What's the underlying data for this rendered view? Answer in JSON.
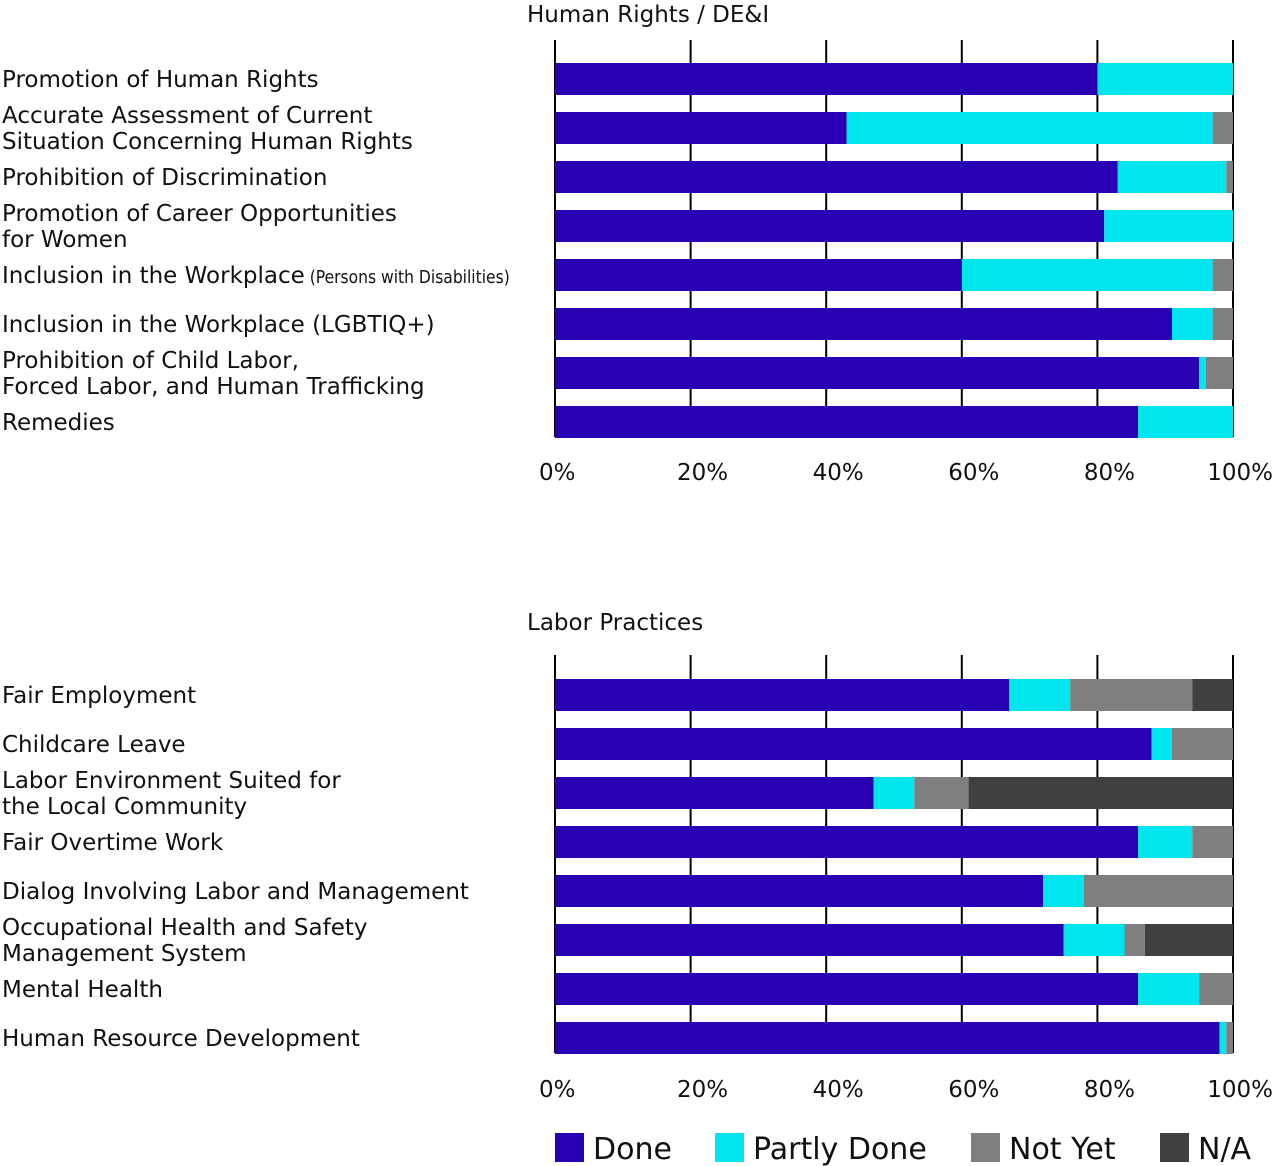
{
  "colors": {
    "Done": "#2a00b4",
    "Partly Done": "#00e6ee",
    "Not Yet": "#7f7f7f",
    "N/A": "#404040"
  },
  "legend": [
    "Done",
    "Partly Done",
    "Not Yet",
    "N/A"
  ],
  "chart_data": [
    {
      "type": "bar",
      "orientation": "horizontal",
      "stacked": true,
      "title": "Human Rights / DE&I",
      "categories": [
        {
          "lines": [
            "Promotion of Human Rights"
          ]
        },
        {
          "lines": [
            "Accurate Assessment of Current",
            "Situation Concerning Human Rights"
          ]
        },
        {
          "lines": [
            "Prohibition of Discrimination"
          ]
        },
        {
          "lines": [
            "Promotion of Career Opportunities",
            "for Women"
          ]
        },
        {
          "lines": [
            "Inclusion in the Workplace"
          ],
          "suffix": "(Persons with Disabilities)"
        },
        {
          "lines": [
            "Inclusion in the Workplace (LGBTIQ+)"
          ]
        },
        {
          "lines": [
            "Prohibition of Child Labor,",
            "Forced Labor, and Human Trafficking"
          ]
        },
        {
          "lines": [
            "Remedies"
          ]
        }
      ],
      "series": [
        {
          "name": "Done",
          "values": [
            80,
            43,
            83,
            81,
            60,
            91,
            95,
            86
          ]
        },
        {
          "name": "Partly Done",
          "values": [
            20,
            54,
            16,
            19,
            37,
            6,
            1,
            14
          ]
        },
        {
          "name": "Not Yet",
          "values": [
            0,
            3,
            1,
            0,
            3,
            3,
            4,
            0
          ]
        },
        {
          "name": "N/A",
          "values": [
            0,
            0,
            0,
            0,
            0,
            0,
            0,
            0
          ]
        }
      ],
      "xlim": [
        0,
        100
      ],
      "xticks": [
        "0%",
        "20%",
        "40%",
        "60%",
        "80%",
        "100%"
      ],
      "grid": true
    },
    {
      "type": "bar",
      "orientation": "horizontal",
      "stacked": true,
      "title": "Labor Practices",
      "categories": [
        {
          "lines": [
            "Fair Employment"
          ]
        },
        {
          "lines": [
            "Childcare Leave"
          ]
        },
        {
          "lines": [
            "Labor Environment Suited for",
            "the Local Community"
          ]
        },
        {
          "lines": [
            "Fair Overtime Work"
          ]
        },
        {
          "lines": [
            "Dialog Involving Labor and Management"
          ]
        },
        {
          "lines": [
            "Occupational Health and Safety",
            "Management System"
          ]
        },
        {
          "lines": [
            "Mental Health"
          ]
        },
        {
          "lines": [
            "Human Resource Development"
          ]
        }
      ],
      "series": [
        {
          "name": "Done",
          "values": [
            67,
            88,
            47,
            86,
            72,
            75,
            86,
            98
          ]
        },
        {
          "name": "Partly Done",
          "values": [
            9,
            3,
            6,
            8,
            6,
            9,
            9,
            1
          ]
        },
        {
          "name": "Not Yet",
          "values": [
            18,
            9,
            8,
            6,
            22,
            3,
            5,
            1
          ]
        },
        {
          "name": "N/A",
          "values": [
            6,
            0,
            39,
            0,
            0,
            13,
            0,
            0
          ]
        }
      ],
      "xlim": [
        0,
        100
      ],
      "xticks": [
        "0%",
        "20%",
        "40%",
        "60%",
        "80%",
        "100%"
      ],
      "grid": true
    }
  ]
}
